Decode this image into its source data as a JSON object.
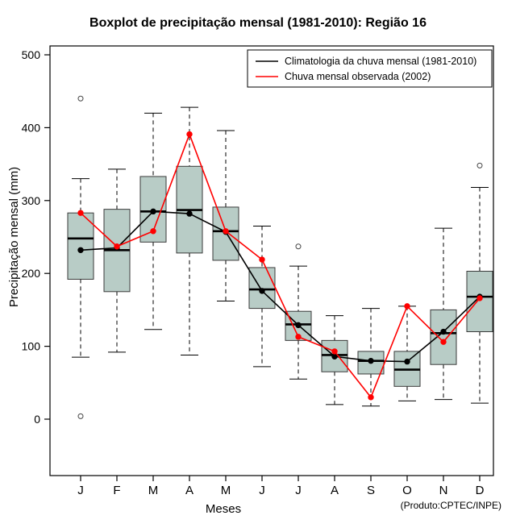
{
  "title": "Boxplot de precipitação mensal (1981-2010): Região 16",
  "product_label": "(Produto:CPTEC/INPE)",
  "legend": [
    {
      "label": "Climatologia da chuva mensal (1981-2010)",
      "color": "#000000"
    },
    {
      "label": "Chuva mensal observada (2002)",
      "color": "#ff0000"
    }
  ],
  "chart_data": {
    "type": "boxplot",
    "title": "Boxplot de precipitação mensal (1981-2010): Região 16",
    "xlabel": "Meses",
    "ylabel": "Precipitação mensal (mm)",
    "categories": [
      "J",
      "F",
      "M",
      "A",
      "M",
      "J",
      "J",
      "A",
      "S",
      "O",
      "N",
      "D"
    ],
    "ylim": [
      0,
      500
    ],
    "yticks": [
      0,
      100,
      200,
      300,
      400,
      500
    ],
    "grid": false,
    "legend_position": "top-right",
    "boxes": [
      {
        "low": 85,
        "q1": 192,
        "median": 248,
        "q3": 283,
        "high": 330,
        "outliers": [
          440,
          4
        ]
      },
      {
        "low": 92,
        "q1": 175,
        "median": 232,
        "q3": 288,
        "high": 343,
        "outliers": []
      },
      {
        "low": 123,
        "q1": 243,
        "median": 285,
        "q3": 333,
        "high": 420,
        "outliers": []
      },
      {
        "low": 88,
        "q1": 228,
        "median": 287,
        "q3": 347,
        "high": 428,
        "outliers": []
      },
      {
        "low": 162,
        "q1": 218,
        "median": 258,
        "q3": 291,
        "high": 396,
        "outliers": []
      },
      {
        "low": 72,
        "q1": 152,
        "median": 178,
        "q3": 208,
        "high": 265,
        "outliers": []
      },
      {
        "low": 55,
        "q1": 108,
        "median": 130,
        "q3": 148,
        "high": 210,
        "outliers": [
          237
        ]
      },
      {
        "low": 20,
        "q1": 65,
        "median": 88,
        "q3": 108,
        "high": 142,
        "outliers": []
      },
      {
        "low": 18,
        "q1": 62,
        "median": 80,
        "q3": 93,
        "high": 152,
        "outliers": []
      },
      {
        "low": 25,
        "q1": 45,
        "median": 68,
        "q3": 93,
        "high": 155,
        "outliers": []
      },
      {
        "low": 27,
        "q1": 75,
        "median": 118,
        "q3": 150,
        "high": 262,
        "outliers": []
      },
      {
        "low": 22,
        "q1": 120,
        "median": 168,
        "q3": 203,
        "high": 318,
        "outliers": [
          348
        ]
      }
    ],
    "series": [
      {
        "name": "Climatologia da chuva mensal (1981-2010)",
        "color": "#000000",
        "values": [
          232,
          235,
          285,
          282,
          257,
          176,
          129,
          86,
          80,
          79,
          120,
          168
        ]
      },
      {
        "name": "Chuva mensal observada (2002)",
        "color": "#ff0000",
        "values": [
          283,
          237,
          258,
          391,
          258,
          219,
          113,
          93,
          30,
          155,
          106,
          166
        ]
      }
    ],
    "colors": {
      "box_fill": "#b8ccc6",
      "box_border": "#3a3a3a",
      "whisker": "#000000",
      "outlier": "#444444"
    }
  }
}
